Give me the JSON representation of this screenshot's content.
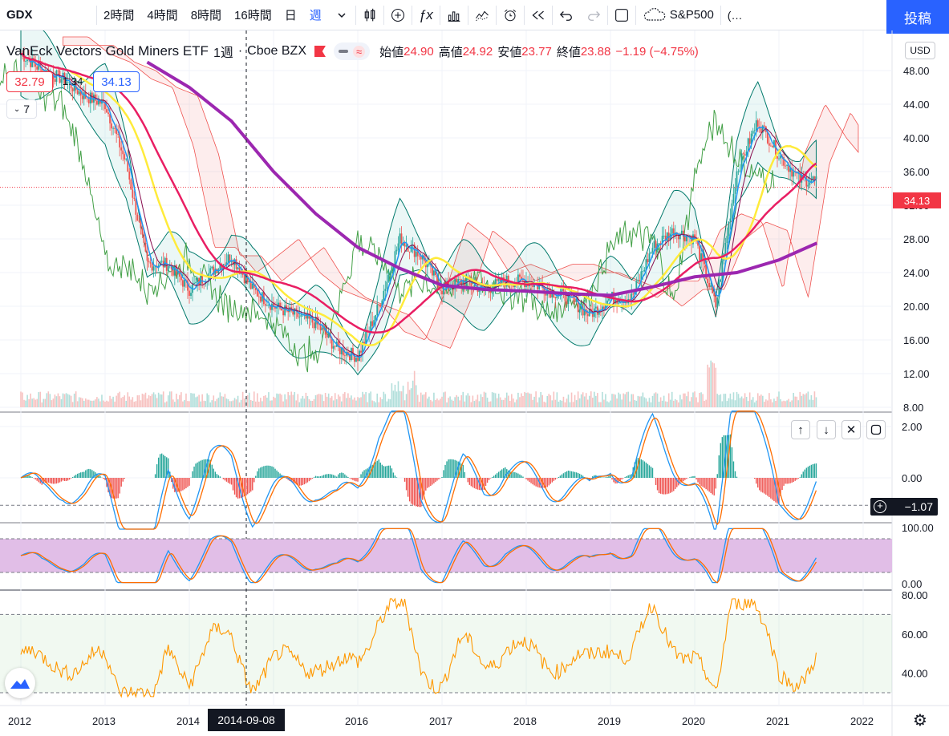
{
  "toolbar": {
    "symbol": "GDX",
    "intervals": [
      "2時間",
      "4時間",
      "8時間",
      "16時間",
      "日",
      "週"
    ],
    "active_interval": "週",
    "compare_label": "S&P500",
    "post_label": "投稿"
  },
  "legend": {
    "title": "VanEck Vectors Gold Miners ETF",
    "interval": "1週",
    "exchange": "Cboe BZX",
    "open_label": "始値",
    "open": "24.90",
    "high_label": "高値",
    "high": "24.92",
    "low_label": "安値",
    "low": "23.77",
    "close_label": "終値",
    "close": "23.88",
    "change": "−1.19 (−4.75%)",
    "bid": "32.79",
    "spread": "1.34",
    "ask": "34.13",
    "collapse_count": "7"
  },
  "currency": "USD",
  "price_tag": "34.13",
  "macd_tag": "−1.07",
  "crosshair_date": "2014-09-08",
  "colors": {
    "up": "#26a69a",
    "down": "#ef5350",
    "ma_fast": "#2196f3",
    "ma_slow": "#880e4f",
    "ma50": "#e91e63",
    "ma100": "#ffeb3b",
    "ma200": "#9c27b0",
    "bb": "#00796b",
    "lagging": "#43a047",
    "rsi": "#ff9800",
    "stoch_band": "#e1bee7"
  },
  "chart_data": [
    {
      "type": "line",
      "name": "price",
      "x": [
        2012.0,
        2012.25,
        2012.5,
        2012.75,
        2013.0,
        2013.25,
        2013.5,
        2013.75,
        2014.0,
        2014.25,
        2014.5,
        2014.75,
        2015.0,
        2015.25,
        2015.5,
        2015.75,
        2016.0,
        2016.25,
        2016.5,
        2016.75,
        2017.0,
        2017.25,
        2017.5,
        2017.75,
        2018.0,
        2018.25,
        2018.5,
        2018.75,
        2019.0,
        2019.25,
        2019.5,
        2019.75,
        2020.0,
        2020.25,
        2020.5,
        2020.75,
        2021.0,
        2021.25,
        2021.45
      ],
      "values": [
        50,
        48,
        47,
        45,
        44,
        37,
        25,
        25,
        22,
        24,
        26,
        22,
        20,
        19,
        18,
        15,
        14,
        20,
        28,
        26,
        22,
        23,
        22,
        23,
        23,
        22,
        21,
        19,
        21,
        21,
        27,
        29,
        28,
        20,
        36,
        42,
        38,
        35,
        35
      ],
      "ylim": [
        8,
        52
      ],
      "yticks": [
        8,
        12,
        16,
        20,
        24,
        28,
        32,
        36,
        40,
        44,
        48
      ],
      "xticks": [
        "2012",
        "2013",
        "2014",
        "2015",
        "2016",
        "2017",
        "2018",
        "2019",
        "2020",
        "2021",
        "2022"
      ]
    },
    {
      "type": "line",
      "name": "ma200",
      "x": [
        2013.5,
        2014.0,
        2014.5,
        2015.0,
        2015.5,
        2016.0,
        2016.5,
        2017.0,
        2017.5,
        2018.0,
        2018.5,
        2019.0,
        2019.5,
        2020.0,
        2020.5,
        2021.0,
        2021.45
      ],
      "values": [
        49,
        46,
        42,
        36,
        31,
        27,
        24.5,
        22.5,
        22,
        21.8,
        21.5,
        21.3,
        22.3,
        23.5,
        24,
        25.5,
        27.5
      ]
    },
    {
      "type": "line",
      "name": "MACD",
      "yticks": [
        0.0,
        2.0
      ],
      "levels": [
        -1.07
      ]
    },
    {
      "type": "line",
      "name": "Stochastic",
      "yticks": [
        0.0,
        100.0
      ],
      "band": [
        20,
        80
      ]
    },
    {
      "type": "line",
      "name": "RSI",
      "yticks": [
        40.0,
        60.0,
        80.0
      ],
      "band": [
        30,
        70
      ]
    }
  ]
}
